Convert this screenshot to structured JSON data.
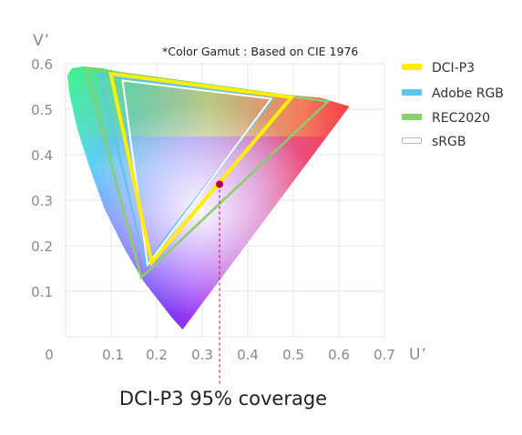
{
  "chart_data": {
    "type": "scatter",
    "title": "",
    "note": "*Color Gamut : Based on CIE 1976",
    "xlabel": "U’",
    "ylabel": "V’",
    "xlim": [
      0,
      0.7
    ],
    "ylim": [
      0,
      0.6
    ],
    "x_ticks": [
      "0",
      "0.1",
      "0.2",
      "0.3",
      "0.4",
      "0.5",
      "0.6",
      "0.7"
    ],
    "y_ticks": [
      "0.1",
      "0.2",
      "0.3",
      "0.4",
      "0.5",
      "0.6"
    ],
    "grid": true,
    "legend_position": "top-right",
    "spectral_locus": [
      [
        0.257,
        0.016
      ],
      [
        0.234,
        0.041
      ],
      [
        0.207,
        0.076
      ],
      [
        0.171,
        0.122
      ],
      [
        0.129,
        0.194
      ],
      [
        0.085,
        0.282
      ],
      [
        0.051,
        0.377
      ],
      [
        0.026,
        0.455
      ],
      [
        0.008,
        0.536
      ],
      [
        0.004,
        0.575
      ],
      [
        0.014,
        0.59
      ],
      [
        0.039,
        0.594
      ],
      [
        0.08,
        0.59
      ],
      [
        0.14,
        0.578
      ],
      [
        0.23,
        0.563
      ],
      [
        0.33,
        0.548
      ],
      [
        0.45,
        0.535
      ],
      [
        0.56,
        0.525
      ],
      [
        0.623,
        0.506
      ]
    ],
    "series": [
      {
        "name": "DCI-P3",
        "color": "#ffef00",
        "points": [
          [
            0.099,
            0.578
          ],
          [
            0.496,
            0.526
          ],
          [
            0.189,
            0.163
          ]
        ]
      },
      {
        "name": "Adobe RGB",
        "color": "#5bc6f0",
        "points": [
          [
            0.076,
            0.576
          ],
          [
            0.454,
            0.523
          ],
          [
            0.175,
            0.158
          ]
        ]
      },
      {
        "name": "REC2020",
        "color": "#86cf6a",
        "points": [
          [
            0.045,
            0.59
          ],
          [
            0.576,
            0.517
          ],
          [
            0.166,
            0.13
          ]
        ]
      },
      {
        "name": "sRGB",
        "color": "#ffffff",
        "points": [
          [
            0.125,
            0.563
          ],
          [
            0.451,
            0.523
          ],
          [
            0.18,
            0.158
          ]
        ]
      }
    ],
    "white_point": [
      0.338,
      0.335
    ],
    "annotation": "DCI-P3 95% coverage"
  }
}
